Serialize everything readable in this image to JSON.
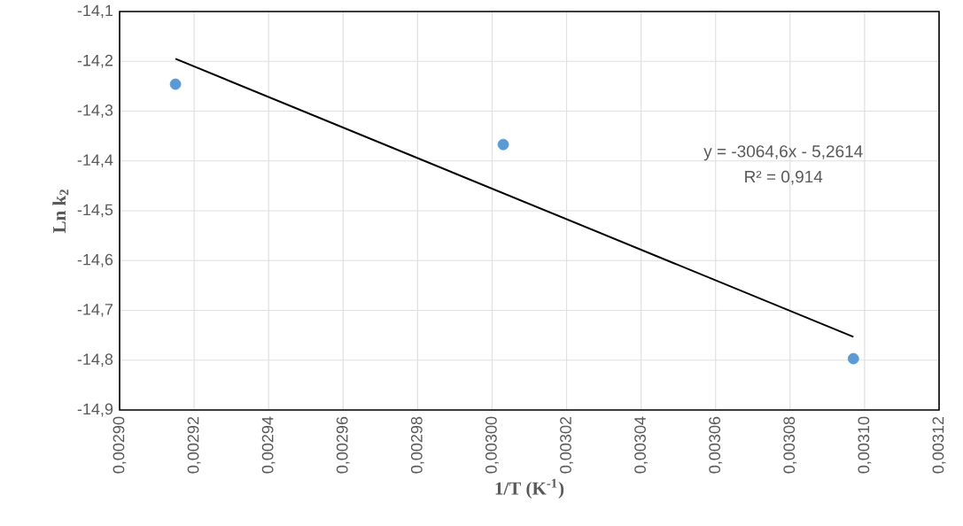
{
  "chart_data": {
    "type": "scatter",
    "xlabel": "1/T (K$^{-1}$)",
    "ylabel": "Ln k$_{2}$",
    "xlim": [
      0.0029,
      0.00312
    ],
    "xticks": [
      {
        "value": 0.0029,
        "label": "0,00290"
      },
      {
        "value": 0.00292,
        "label": "0,00292"
      },
      {
        "value": 0.00294,
        "label": "0,00294"
      },
      {
        "value": 0.00296,
        "label": "0,00296"
      },
      {
        "value": 0.00298,
        "label": "0,00298"
      },
      {
        "value": 0.003,
        "label": "0,00300"
      },
      {
        "value": 0.00302,
        "label": "0,00302"
      },
      {
        "value": 0.00304,
        "label": "0,00304"
      },
      {
        "value": 0.00306,
        "label": "0,00306"
      },
      {
        "value": 0.00308,
        "label": "0,00308"
      },
      {
        "value": 0.0031,
        "label": "0,00310"
      },
      {
        "value": 0.00312,
        "label": "0,00312"
      }
    ],
    "ylim": [
      -14.9,
      -14.1
    ],
    "yticks": [
      {
        "value": -14.9,
        "label": "-14,9"
      },
      {
        "value": -14.8,
        "label": "-14,8"
      },
      {
        "value": -14.7,
        "label": "-14,7"
      },
      {
        "value": -14.6,
        "label": "-14,6"
      },
      {
        "value": -14.5,
        "label": "-14,5"
      },
      {
        "value": -14.4,
        "label": "-14,4"
      },
      {
        "value": -14.3,
        "label": "-14,3"
      },
      {
        "value": -14.2,
        "label": "-14,2"
      },
      {
        "value": -14.1,
        "label": "-14,1"
      }
    ],
    "grid": true,
    "series": [
      {
        "marker": "circle",
        "color": "#5b9bd5",
        "x": [
          0.002915,
          0.003003,
          0.003097
        ],
        "values": [
          -14.246,
          -14.367,
          -14.797
        ]
      },
      {
        "type": "line",
        "color": "#000000",
        "x": [
          0.002915,
          0.003097
        ],
        "values": [
          -14.195,
          -14.753
        ],
        "marker": "none"
      }
    ],
    "annotations": [
      "y = -3064,6x - 5,2614",
      "R² = 0,914"
    ]
  }
}
